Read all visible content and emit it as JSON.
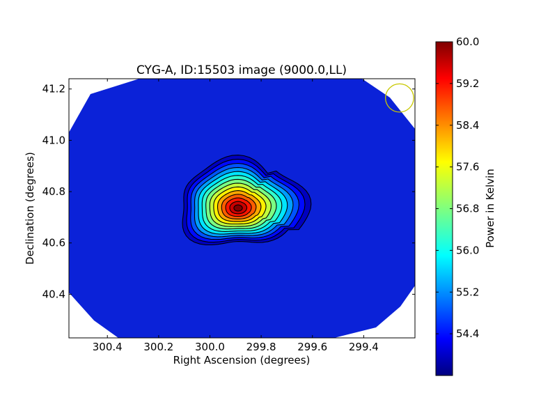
{
  "chart_data": {
    "type": "heatmap",
    "title": "CYG-A, ID:15503 image (9000.0,LL)",
    "xlabel": "Right Ascension (degrees)",
    "ylabel": "Declination (degrees)",
    "colorbar_label": "Power in Kelvin",
    "colormap": "jet",
    "xlim": [
      300.55,
      299.2
    ],
    "ylim": [
      40.23,
      41.24
    ],
    "x_ticks": [
      300.4,
      300.2,
      300.0,
      299.8,
      299.6,
      299.4
    ],
    "x_tick_labels": [
      "300.4",
      "300.2",
      "300.0",
      "299.8",
      "299.6",
      "299.4"
    ],
    "y_ticks": [
      40.4,
      40.6,
      40.8,
      41.0,
      41.2
    ],
    "y_tick_labels": [
      "40.4",
      "40.6",
      "40.8",
      "41.0",
      "41.2"
    ],
    "colorbar_range": [
      53.6,
      60.0
    ],
    "colorbar_ticks": [
      54.4,
      55.2,
      56.0,
      56.8,
      57.6,
      58.4,
      59.2,
      60.0
    ],
    "colorbar_tick_labels": [
      "54.4",
      "55.2",
      "56.0",
      "56.8",
      "57.6",
      "58.4",
      "59.2",
      "60.0"
    ],
    "background_level": 54.0,
    "source": {
      "ra": 299.89,
      "dec": 40.735,
      "peak": 60.0
    },
    "contour_count": 14,
    "beam_marker": {
      "ra": 299.26,
      "dec": 41.165,
      "radius_deg": 0.055,
      "color": "#c8c800"
    }
  }
}
